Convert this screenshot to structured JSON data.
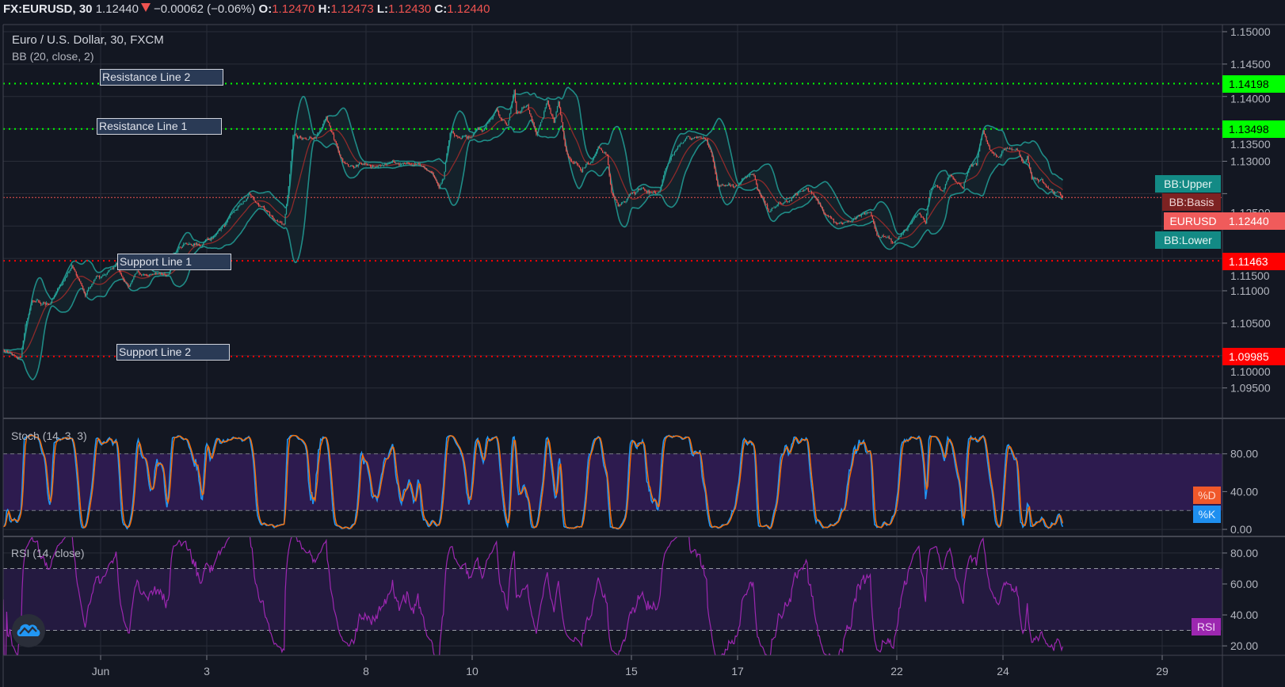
{
  "header": {
    "symbol": "FX:EURUSD, 30",
    "last": "1.12440",
    "direction_icon": "triangle-down",
    "change": "−0.00062 (−0.06%)",
    "o_label": "O:",
    "o": "1.12470",
    "h_label": "H:",
    "h": "1.12473",
    "l_label": "L:",
    "l": "1.12430",
    "c_label": "C:",
    "c": "1.12440"
  },
  "legend": {
    "title": "Euro / U.S. Dollar, 30, FXCM",
    "bb": "BB (20, close, 2)",
    "stoch": "Stoch (14, 3, 3)",
    "rsi": "RSI (14, close)"
  },
  "drawings": [
    {
      "label": "Resistance Line 2",
      "price": 1.14198,
      "price_label": "1.14198",
      "color": "#00ff00"
    },
    {
      "label": "Resistance Line 1",
      "price": 1.13498,
      "price_label": "1.13498",
      "color": "#00ff00"
    },
    {
      "label": "Support Line 1",
      "price": 1.11463,
      "price_label": "1.11463",
      "color": "#ff0000"
    },
    {
      "label": "Support Line 2",
      "price": 1.09985,
      "price_label": "1.09985",
      "color": "#ff0000"
    }
  ],
  "series_tags": {
    "bb_upper": "BB:Upper",
    "bb_basis": "BB:Basis",
    "symbol": "EURUSD",
    "symbol_price": "1.12440",
    "bb_lower": "BB:Lower",
    "stoch_d": "%D",
    "stoch_k": "%K",
    "rsi": "RSI"
  },
  "logo_icon": "tradingview-cloud-icon",
  "chart_data": {
    "type": "candlestick",
    "symbol": "EURUSD",
    "interval": "30",
    "grid": true,
    "colors": {
      "background": "#131722",
      "grid": "#2a2e39",
      "up": "#26a69a",
      "down": "#ef5350",
      "last_price": "#ef5350"
    },
    "x_ticks": [
      {
        "label": "Jun",
        "date": "Jun 1"
      },
      {
        "label": "3",
        "date": "Jun 3"
      },
      {
        "label": "8",
        "date": "Jun 8"
      },
      {
        "label": "10",
        "date": "Jun 10"
      },
      {
        "label": "15",
        "date": "Jun 15"
      },
      {
        "label": "17",
        "date": "Jun 17"
      },
      {
        "label": "22",
        "date": "Jun 22"
      },
      {
        "label": "24",
        "date": "Jun 24"
      },
      {
        "label": "29",
        "date": "Jun 29"
      }
    ],
    "price_axis": {
      "ylim": [
        1.0903,
        1.1511
      ],
      "ticks": [
        "1.09500",
        "1.10000",
        "1.10500",
        "1.11000",
        "1.11500",
        "1.12000",
        "1.12500",
        "1.13000",
        "1.13500",
        "1.14000",
        "1.14500",
        "1.15000"
      ]
    },
    "last_price": 1.1244,
    "last_candle": {
      "o": 1.1247,
      "h": 1.12473,
      "l": 1.1243,
      "c": 1.1244
    },
    "price_path": [
      {
        "t": "May 28 04:00",
        "p": 1.101
      },
      {
        "t": "May 28 09:00",
        "p": 1.1002
      },
      {
        "t": "May 28 12:00",
        "p": 1.1
      },
      {
        "t": "May 28 14:00",
        "p": 1.1051
      },
      {
        "t": "May 28 17:00",
        "p": 1.1084
      },
      {
        "t": "May 28 21:00",
        "p": 1.1075
      },
      {
        "t": "May 29 01:00",
        "p": 1.108
      },
      {
        "t": "May 29 04:00",
        "p": 1.1096
      },
      {
        "t": "May 29 08:00",
        "p": 1.1124
      },
      {
        "t": "May 29 11:00",
        "p": 1.1141
      },
      {
        "t": "May 29 13:00",
        "p": 1.1121
      },
      {
        "t": "May 29 17:00",
        "p": 1.1092
      },
      {
        "t": "May 29 21:00",
        "p": 1.1112
      },
      {
        "t": "Jun 1 02:00",
        "p": 1.1124
      },
      {
        "t": "Jun 1 05:00",
        "p": 1.1137
      },
      {
        "t": "Jun 1 07:00",
        "p": 1.1145
      },
      {
        "t": "Jun 1 11:00",
        "p": 1.1112
      },
      {
        "t": "Jun 1 13:00",
        "p": 1.1105
      },
      {
        "t": "Jun 1 16:00",
        "p": 1.1129
      },
      {
        "t": "Jun 2 02:00",
        "p": 1.1129
      },
      {
        "t": "Jun 2 07:00",
        "p": 1.1124
      },
      {
        "t": "Jun 2 09:00",
        "p": 1.1157
      },
      {
        "t": "Jun 2 14:00",
        "p": 1.1173
      },
      {
        "t": "Jun 2 23:00",
        "p": 1.1173
      },
      {
        "t": "Jun 3 06:00",
        "p": 1.1194
      },
      {
        "t": "Jun 3 14:00",
        "p": 1.1227
      },
      {
        "t": "Jun 3 19:00",
        "p": 1.1247
      },
      {
        "t": "Jun 4 01:00",
        "p": 1.1227
      },
      {
        "t": "Jun 4 07:00",
        "p": 1.121
      },
      {
        "t": "Jun 4 11:00",
        "p": 1.1203
      },
      {
        "t": "Jun 4 13:00",
        "p": 1.1264
      },
      {
        "t": "Jun 4 15:00",
        "p": 1.1337
      },
      {
        "t": "Jun 4 20:00",
        "p": 1.1337
      },
      {
        "t": "Jun 5 02:00",
        "p": 1.1337
      },
      {
        "t": "Jun 5 06:00",
        "p": 1.1365
      },
      {
        "t": "Jun 5 09:00",
        "p": 1.1337
      },
      {
        "t": "Jun 5 12:00",
        "p": 1.1304
      },
      {
        "t": "Jun 5 16:00",
        "p": 1.1292
      },
      {
        "t": "Jun 5 22:00",
        "p": 1.1296
      },
      {
        "t": "Jun 8 04:00",
        "p": 1.1292
      },
      {
        "t": "Jun 8 14:00",
        "p": 1.13
      },
      {
        "t": "Jun 8 18:00",
        "p": 1.1296
      },
      {
        "t": "Jun 9 01:00",
        "p": 1.1292
      },
      {
        "t": "Jun 9 06:00",
        "p": 1.1283
      },
      {
        "t": "Jun 9 09:00",
        "p": 1.1259
      },
      {
        "t": "Jun 9 11:00",
        "p": 1.1276
      },
      {
        "t": "Jun 9 14:00",
        "p": 1.1345
      },
      {
        "t": "Jun 9 18:00",
        "p": 1.1341
      },
      {
        "t": "Jun 9 23:00",
        "p": 1.1337
      },
      {
        "t": "Jun 10 05:00",
        "p": 1.1349
      },
      {
        "t": "Jun 10 11:00",
        "p": 1.1378
      },
      {
        "t": "Jun 10 16:00",
        "p": 1.1353
      },
      {
        "t": "Jun 10 19:00",
        "p": 1.1414
      },
      {
        "t": "Jun 10 20:00",
        "p": 1.1374
      },
      {
        "t": "Jun 11 01:00",
        "p": 1.1386
      },
      {
        "t": "Jun 11 05:00",
        "p": 1.1341
      },
      {
        "t": "Jun 11 10:00",
        "p": 1.1394
      },
      {
        "t": "Jun 11 13:00",
        "p": 1.1357
      },
      {
        "t": "Jun 11 15:00",
        "p": 1.1394
      },
      {
        "t": "Jun 11 18:00",
        "p": 1.1325
      },
      {
        "t": "Jun 11 20:00",
        "p": 1.13
      },
      {
        "t": "Jun 12 01:00",
        "p": 1.1288
      },
      {
        "t": "Jun 12 06:00",
        "p": 1.1296
      },
      {
        "t": "Jun 12 09:00",
        "p": 1.1325
      },
      {
        "t": "Jun 12 13:00",
        "p": 1.1308
      },
      {
        "t": "Jun 12 15:00",
        "p": 1.1252
      },
      {
        "t": "Jun 12 18:00",
        "p": 1.1227
      },
      {
        "t": "Jun 12 23:00",
        "p": 1.1247
      },
      {
        "t": "Jun 15 04:00",
        "p": 1.1259
      },
      {
        "t": "Jun 15 08:00",
        "p": 1.1247
      },
      {
        "t": "Jun 15 13:00",
        "p": 1.1252
      },
      {
        "t": "Jun 15 15:00",
        "p": 1.1283
      },
      {
        "t": "Jun 15 19:00",
        "p": 1.1316
      },
      {
        "t": "Jun 16 01:00",
        "p": 1.1337
      },
      {
        "t": "Jun 16 06:00",
        "p": 1.1341
      },
      {
        "t": "Jun 16 10:00",
        "p": 1.1329
      },
      {
        "t": "Jun 16 13:00",
        "p": 1.1296
      },
      {
        "t": "Jun 16 15:00",
        "p": 1.1264
      },
      {
        "t": "Jun 16 21:00",
        "p": 1.1264
      },
      {
        "t": "Jun 17 01:00",
        "p": 1.1264
      },
      {
        "t": "Jun 17 07:00",
        "p": 1.1283
      },
      {
        "t": "Jun 17 09:00",
        "p": 1.1255
      },
      {
        "t": "Jun 17 14:00",
        "p": 1.1227
      },
      {
        "t": "Jun 17 19:00",
        "p": 1.1234
      },
      {
        "t": "Jun 18 01:00",
        "p": 1.1247
      },
      {
        "t": "Jun 18 07:00",
        "p": 1.1255
      },
      {
        "t": "Jun 18 12:00",
        "p": 1.1243
      },
      {
        "t": "Jun 18 15:00",
        "p": 1.1218
      },
      {
        "t": "Jun 18 21:00",
        "p": 1.1206
      },
      {
        "t": "Jun 19 02:00",
        "p": 1.121
      },
      {
        "t": "Jun 19 12:00",
        "p": 1.1225
      },
      {
        "t": "Jun 19 15:00",
        "p": 1.1185
      },
      {
        "t": "Jun 19 23:00",
        "p": 1.1173
      },
      {
        "t": "Jun 22 06:00",
        "p": 1.1202
      },
      {
        "t": "Jun 22 10:00",
        "p": 1.1222
      },
      {
        "t": "Jun 22 13:00",
        "p": 1.1206
      },
      {
        "t": "Jun 22 15:00",
        "p": 1.1259
      },
      {
        "t": "Jun 22 21:00",
        "p": 1.1259
      },
      {
        "t": "Jun 23 00:00",
        "p": 1.1276
      },
      {
        "t": "Jun 23 06:00",
        "p": 1.1259
      },
      {
        "t": "Jun 23 09:00",
        "p": 1.1296
      },
      {
        "t": "Jun 23 12:00",
        "p": 1.1296
      },
      {
        "t": "Jun 23 14:00",
        "p": 1.1332
      },
      {
        "t": "Jun 23 15:00",
        "p": 1.1345
      },
      {
        "t": "Jun 23 18:00",
        "p": 1.1316
      },
      {
        "t": "Jun 23 22:00",
        "p": 1.1308
      },
      {
        "t": "Jun 24 02:00",
        "p": 1.132
      },
      {
        "t": "Jun 24 07:00",
        "p": 1.1316
      },
      {
        "t": "Jun 24 09:00",
        "p": 1.1296
      },
      {
        "t": "Jun 24 11:00",
        "p": 1.1304
      },
      {
        "t": "Jun 24 13:00",
        "p": 1.1271
      },
      {
        "t": "Jun 24 18:00",
        "p": 1.1267
      },
      {
        "t": "Jun 24 22:00",
        "p": 1.1253
      },
      {
        "t": "Jun 25 01:00",
        "p": 1.1255
      },
      {
        "t": "Jun 25 03:00",
        "p": 1.1244
      }
    ],
    "indicators": {
      "bb": {
        "length": 20,
        "source": "close",
        "mult": 2,
        "band_color": "#1f8c87",
        "basis_color": "#8e2a2a"
      },
      "stoch": {
        "k": 14,
        "smooth_k": 3,
        "d": 3,
        "ylim": [
          -7.5,
          116.7
        ],
        "ticks": [
          "0.00",
          "40.00",
          "80.00"
        ],
        "bands": [
          80,
          20
        ],
        "k_color": "#2196f3",
        "d_color": "#ff6d00",
        "band_fill": "#2d1b4f"
      },
      "rsi": {
        "length": 14,
        "source": "close",
        "ylim": [
          13.9,
          90.2
        ],
        "ticks": [
          "20.00",
          "40.00",
          "60.00",
          "80.00"
        ],
        "bands": [
          70,
          30
        ],
        "color": "#9c27b0",
        "band_fill": "#241a40"
      }
    }
  }
}
